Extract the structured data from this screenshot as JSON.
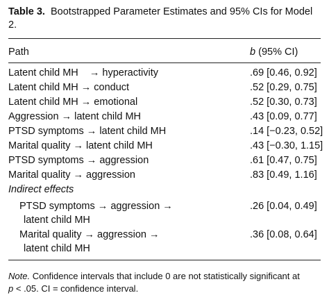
{
  "table": {
    "label": "Table 3.",
    "title": "Bootstrapped Parameter Estimates and 95% CIs for Model 2.",
    "headers": {
      "path": "Path",
      "b": "b",
      "ci": "(95% CI)"
    },
    "rows": [
      {
        "path": "Latent child MH    → hyperactivity",
        "estimate": ".69 [0.46, 0.92]"
      },
      {
        "path": "Latent child MH → conduct",
        "estimate": ".52 [0.29, 0.75]"
      },
      {
        "path": "Latent child MH → emotional",
        "estimate": ".52 [0.30, 0.73]"
      },
      {
        "path": "Aggression → latent child MH",
        "estimate": ".43 [0.09, 0.77]"
      },
      {
        "path": "PTSD symptoms → latent child MH",
        "estimate": ".14 [−0.23, 0.52]"
      },
      {
        "path": "Marital quality → latent child MH",
        "estimate": ".43 [−0.30, 1.15]"
      },
      {
        "path": "PTSD symptoms → aggression",
        "estimate": ".61 [0.47, 0.75]"
      },
      {
        "path": "Marital quality → aggression",
        "estimate": ".83 [0.49, 1.16]"
      }
    ],
    "indirect_label": "Indirect effects",
    "indirect_rows": [
      {
        "line1": "PTSD symptoms → aggression →",
        "line2": "latent child MH",
        "estimate": ".26 [0.04, 0.49]"
      },
      {
        "line1": "Marital quality → aggression →",
        "line2": "latent child MH",
        "estimate": ".36 [0.08, 0.64]"
      }
    ],
    "note": {
      "label": "Note.",
      "text_line1": "Confidence intervals that include 0 are not statistically significant at",
      "p": "p",
      "text_line2": "< .05. CI = confidence interval."
    }
  }
}
